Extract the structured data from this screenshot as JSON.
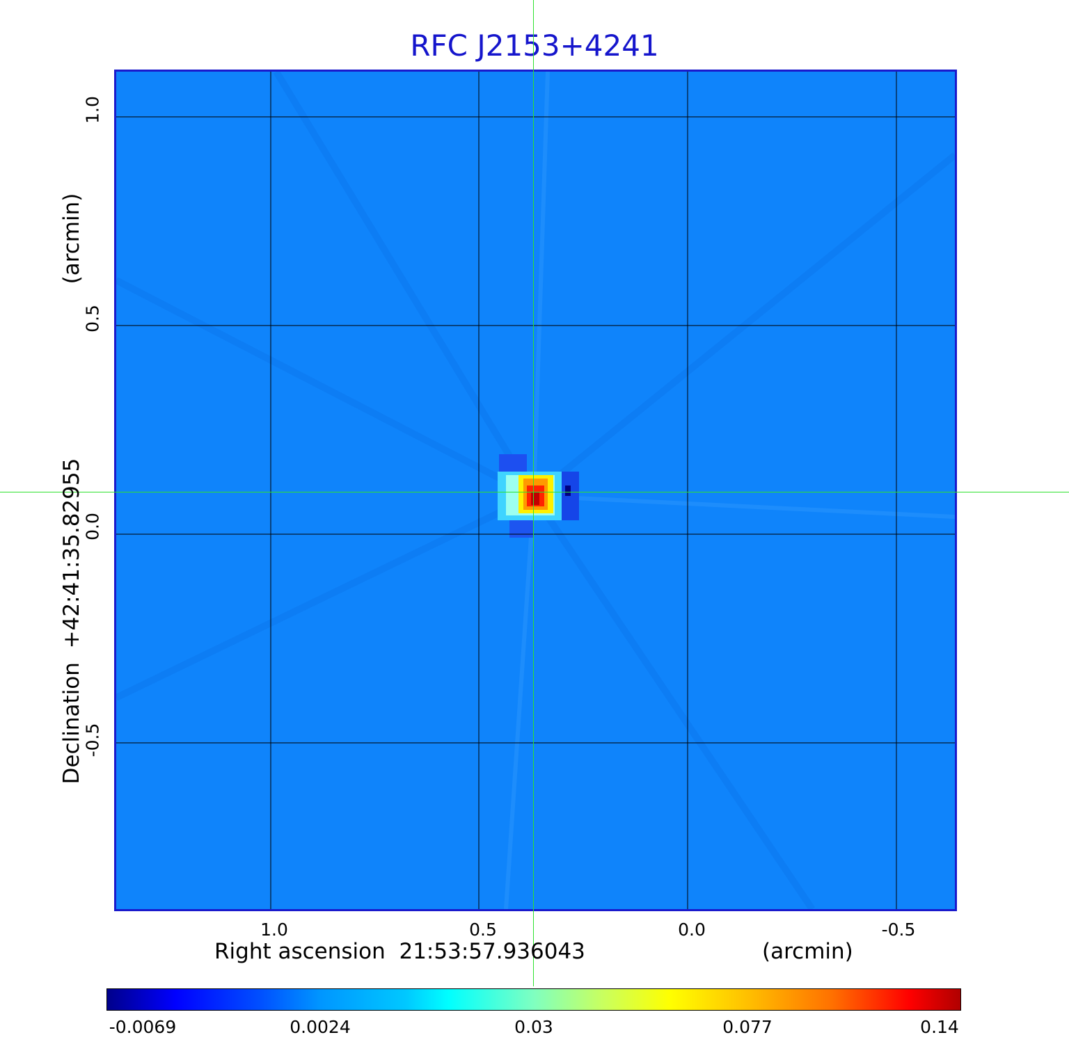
{
  "title": "RFC J2153+4241",
  "x_axis": {
    "label": "Right ascension  21:53:57.936043",
    "unit": "(arcmin)",
    "ticks": [
      "1.0",
      "0.5",
      "0.0",
      "-0.5"
    ]
  },
  "y_axis": {
    "label": "Declination  +42:41:35.82955",
    "unit": "(arcmin)",
    "ticks": [
      "1.0",
      "0.5",
      "0.0",
      "-0.5"
    ]
  },
  "colorbar": {
    "ticks": [
      "-0.0069",
      "0.0024",
      "0.03",
      "0.077",
      "0.14"
    ]
  },
  "colors": {
    "title": "#1515cc",
    "background_map": "#0f84fb",
    "crosshair": "#2ee22e"
  }
}
